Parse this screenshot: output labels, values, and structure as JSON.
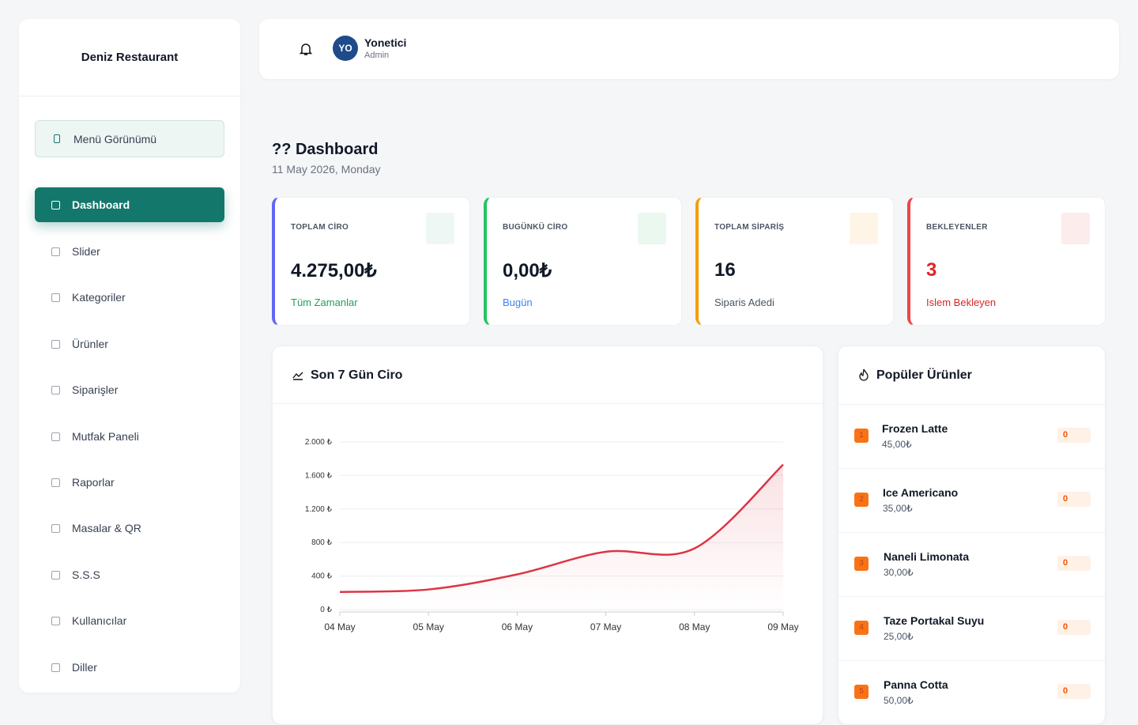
{
  "sidebar": {
    "brand": "Deniz Restaurant",
    "menu_button": "Menü Görünümü",
    "nav": [
      "Dashboard",
      "Slider",
      "Kategoriler",
      "Ürünler",
      "Siparişler",
      "Mutfak Paneli",
      "Raporlar",
      "Masalar & QR",
      "S.S.S",
      "Kullanıcılar",
      "Diller"
    ]
  },
  "header": {
    "avatar": "YO",
    "user_name": "Yonetici",
    "user_role": "Admin"
  },
  "page": {
    "title": "?? Dashboard",
    "date": "11 May 2026, Monday"
  },
  "stats": [
    {
      "label": "TOPLAM CİRO",
      "value": "4.275,00₺",
      "note": "Tüm Zamanlar"
    },
    {
      "label": "BUGÜNKÜ CİRO",
      "value": "0,00₺",
      "note": "Bugün"
    },
    {
      "label": "TOPLAM SİPARİŞ",
      "value": "16",
      "note": "Siparis Adedi"
    },
    {
      "label": "BEKLEYENLER",
      "value": "3",
      "note": "Islem Bekleyen"
    }
  ],
  "chart_data": {
    "type": "line",
    "title": "Son 7 Gün Ciro",
    "categories": [
      "04 May",
      "05 May",
      "06 May",
      "07 May",
      "08 May",
      "09 May"
    ],
    "values": [
      210,
      240,
      420,
      690,
      730,
      1730
    ],
    "color": "#dc3545",
    "ylim": [
      0,
      2000
    ],
    "yticks": [
      {
        "value": 0,
        "label": "0 ₺"
      },
      {
        "value": 400,
        "label": "400 ₺"
      },
      {
        "value": 800,
        "label": "800 ₺"
      },
      {
        "value": 1200,
        "label": "1.200 ₺"
      },
      {
        "value": 1600,
        "label": "1.600 ₺"
      },
      {
        "value": 2000,
        "label": "2.000 ₺"
      }
    ],
    "grid": true
  },
  "popular": {
    "title": "Popüler Ürünler",
    "items": [
      {
        "rank": 1,
        "name": "Frozen Latte",
        "price": "45,00₺",
        "count": 0
      },
      {
        "rank": 2,
        "name": "Ice Americano",
        "price": "35,00₺",
        "count": 0
      },
      {
        "rank": 3,
        "name": "Naneli Limonata",
        "price": "30,00₺",
        "count": 0
      },
      {
        "rank": 4,
        "name": "Taze Portakal Suyu",
        "price": "25,00₺",
        "count": 0
      },
      {
        "rank": 5,
        "name": "Panna Cotta",
        "price": "50,00₺",
        "count": 0
      }
    ]
  }
}
